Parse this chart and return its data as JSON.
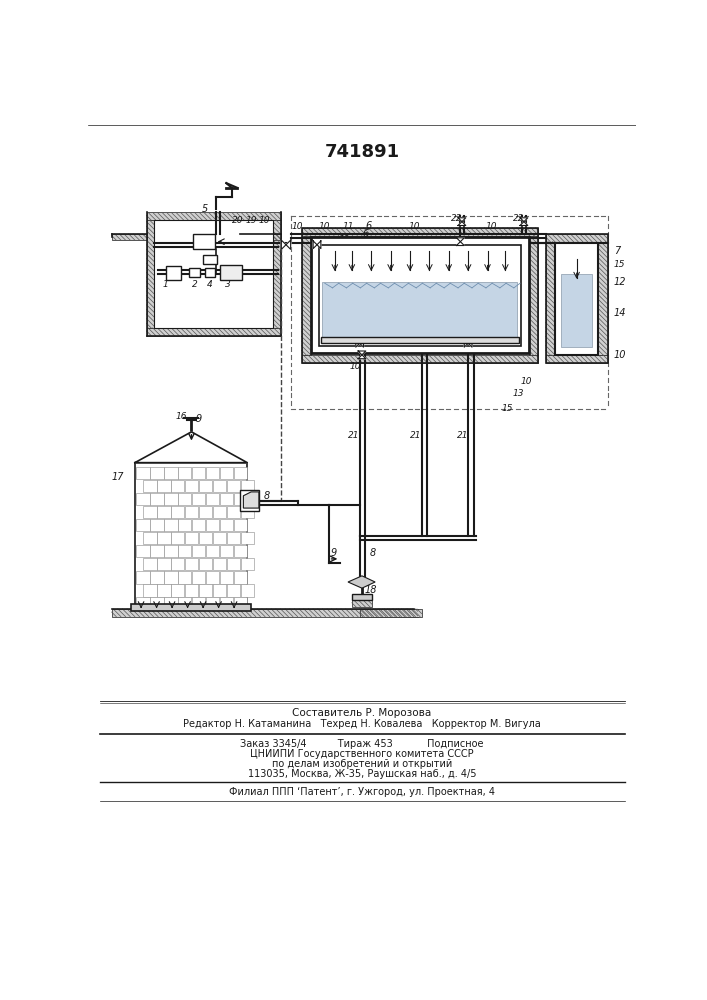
{
  "title": "741891",
  "bg": "#ffffff",
  "lc": "#1a1a1a",
  "footer_lines": [
    "Составитель Р. Морозова",
    "Редактор Н. Катаманина   Техред Н. Ковалева   Корректор М. Вигула",
    "Заказ 3345/4          Тираж 453           Подписное",
    "ЦНИИПИ Государственного комитета СССР",
    "по делам изобретений и открытий",
    "113035, Москва, Ж-35, Раушская наб., д. 4/5",
    "Филиал ППП ‘Патент’, г. Ужгород, ул. Проектная, 4"
  ]
}
